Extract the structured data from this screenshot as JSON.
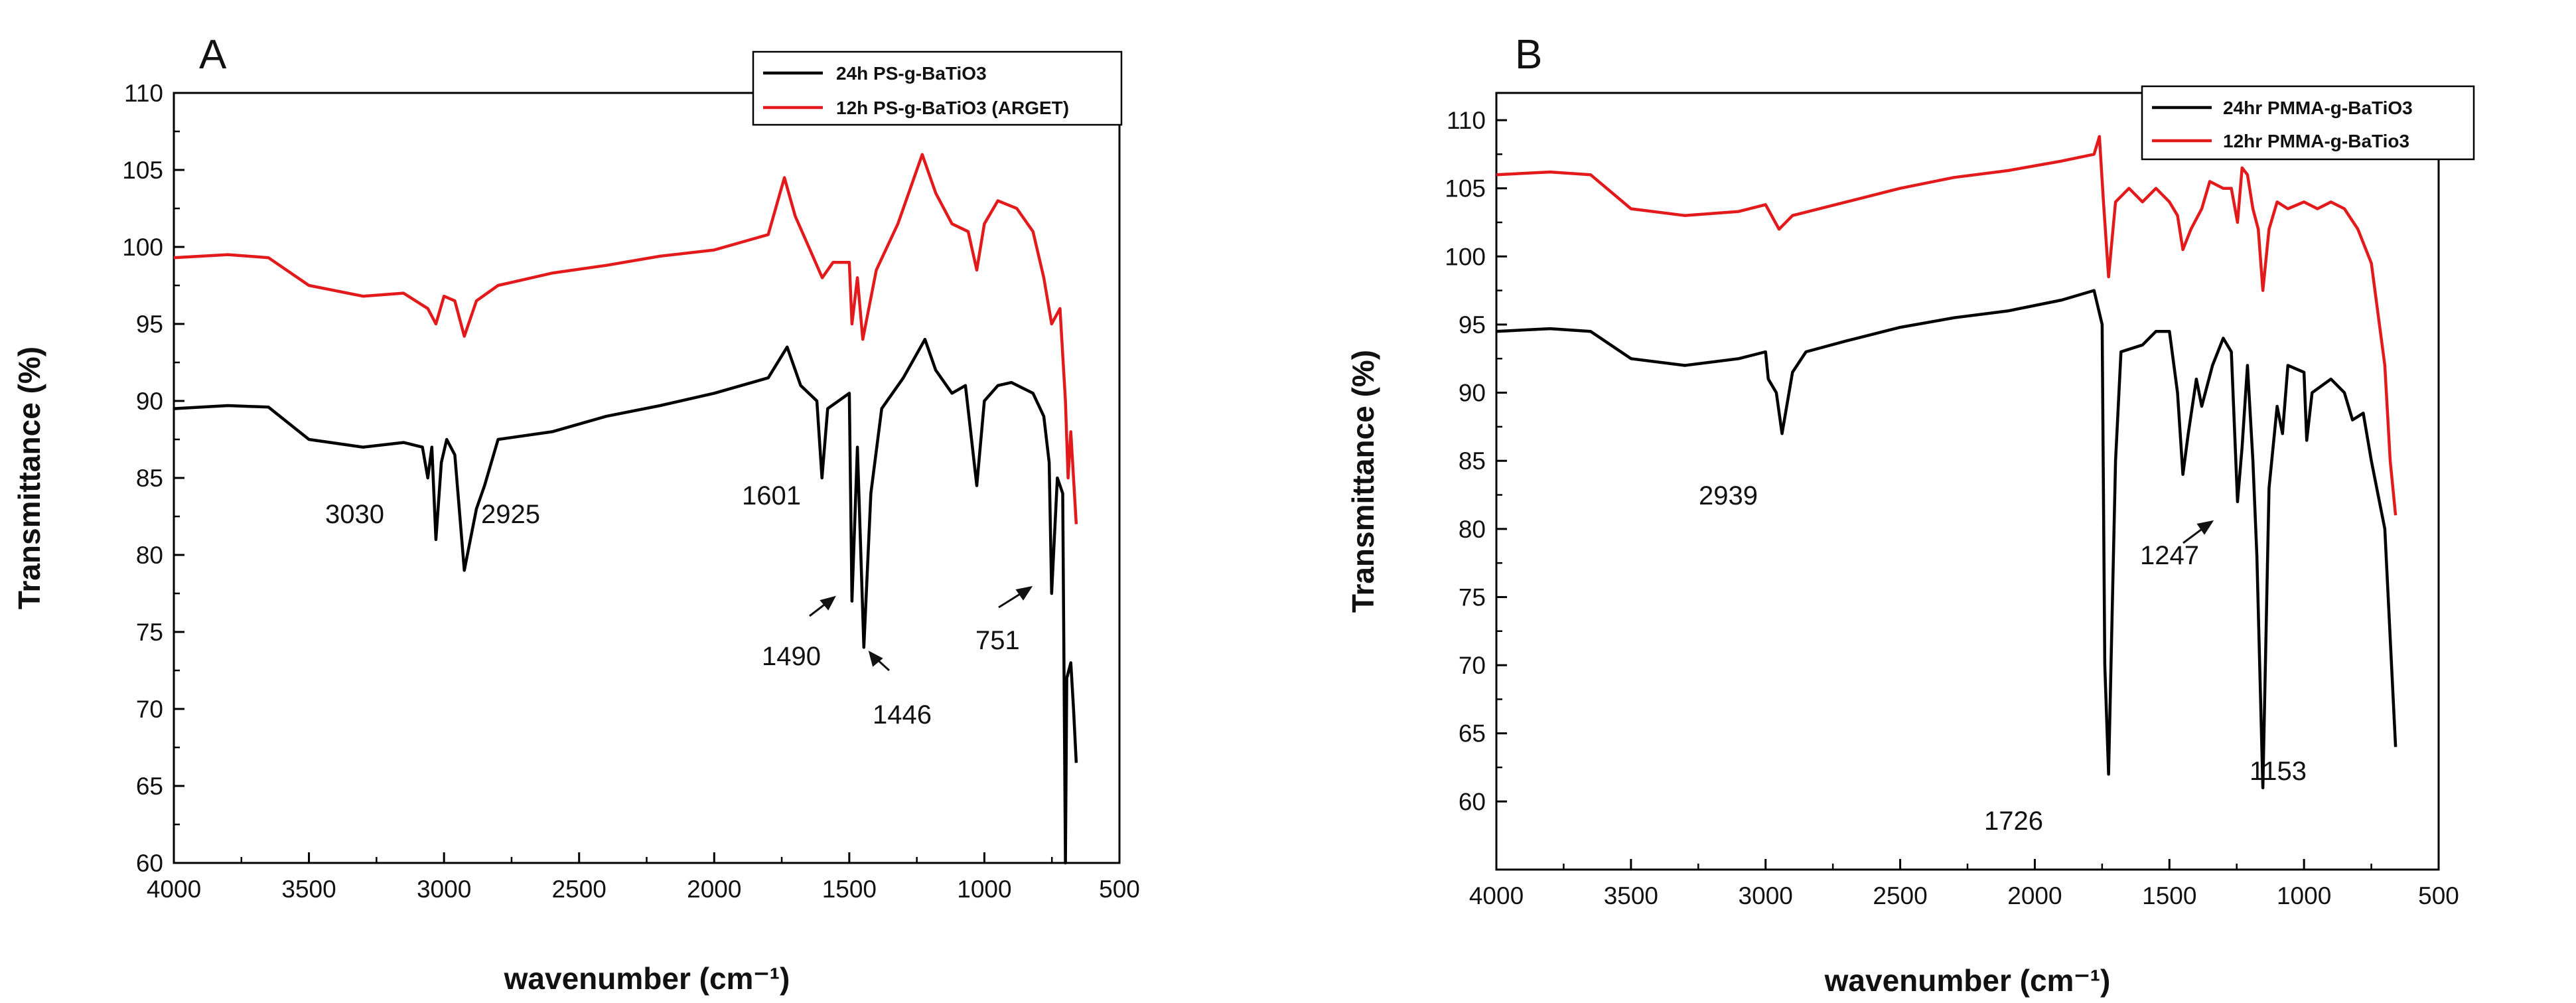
{
  "chart_data": [
    {
      "type": "line",
      "panel": "A",
      "xlabel": "wavenumber (cm⁻¹)",
      "ylabel": "Transmittance (%)",
      "xlim": [
        4000,
        500
      ],
      "ylim": [
        60,
        110
      ],
      "xticks": [
        4000,
        3500,
        3000,
        2500,
        2000,
        1500,
        1000,
        500
      ],
      "yticks": [
        60,
        65,
        70,
        75,
        80,
        85,
        90,
        95,
        100,
        105,
        110
      ],
      "legend_position": "top-right",
      "series": [
        {
          "name": "24h PS-g-BaTiO3",
          "color": "#000000",
          "points": [
            [
              4000,
              89.5
            ],
            [
              3800,
              89.7
            ],
            [
              3650,
              89.6
            ],
            [
              3500,
              87.5
            ],
            [
              3300,
              87.0
            ],
            [
              3150,
              87.3
            ],
            [
              3080,
              87.0
            ],
            [
              3060,
              85.0
            ],
            [
              3045,
              87.0
            ],
            [
              3030,
              81.0
            ],
            [
              3010,
              86.0
            ],
            [
              2990,
              87.5
            ],
            [
              2960,
              86.5
            ],
            [
              2925,
              79.0
            ],
            [
              2880,
              83.0
            ],
            [
              2850,
              84.5
            ],
            [
              2800,
              87.5
            ],
            [
              2600,
              88.0
            ],
            [
              2400,
              89.0
            ],
            [
              2200,
              89.7
            ],
            [
              2000,
              90.5
            ],
            [
              1900,
              91.0
            ],
            [
              1800,
              91.5
            ],
            [
              1730,
              93.5
            ],
            [
              1680,
              91.0
            ],
            [
              1620,
              90.0
            ],
            [
              1601,
              85.0
            ],
            [
              1580,
              89.5
            ],
            [
              1500,
              90.5
            ],
            [
              1490,
              77.0
            ],
            [
              1470,
              87.0
            ],
            [
              1446,
              74.0
            ],
            [
              1420,
              84.0
            ],
            [
              1380,
              89.5
            ],
            [
              1300,
              91.5
            ],
            [
              1220,
              94.0
            ],
            [
              1180,
              92.0
            ],
            [
              1120,
              90.5
            ],
            [
              1070,
              91.0
            ],
            [
              1028,
              84.5
            ],
            [
              1000,
              90.0
            ],
            [
              950,
              91.0
            ],
            [
              900,
              91.2
            ],
            [
              820,
              90.5
            ],
            [
              780,
              89.0
            ],
            [
              760,
              86.0
            ],
            [
              751,
              77.5
            ],
            [
              730,
              85.0
            ],
            [
              710,
              84.0
            ],
            [
              700,
              60.0
            ],
            [
              695,
              72.0
            ],
            [
              680,
              73.0
            ],
            [
              670,
              70.0
            ],
            [
              660,
              66.5
            ]
          ]
        },
        {
          "name": "12h PS-g-BaTiO3 (ARGET)",
          "color": "#e31a1c",
          "points": [
            [
              4000,
              99.3
            ],
            [
              3800,
              99.5
            ],
            [
              3650,
              99.3
            ],
            [
              3500,
              97.5
            ],
            [
              3300,
              96.8
            ],
            [
              3150,
              97.0
            ],
            [
              3060,
              96.0
            ],
            [
              3030,
              95.0
            ],
            [
              3000,
              96.8
            ],
            [
              2960,
              96.5
            ],
            [
              2925,
              94.2
            ],
            [
              2880,
              96.5
            ],
            [
              2800,
              97.5
            ],
            [
              2600,
              98.3
            ],
            [
              2400,
              98.8
            ],
            [
              2200,
              99.4
            ],
            [
              2000,
              99.8
            ],
            [
              1900,
              100.3
            ],
            [
              1800,
              100.8
            ],
            [
              1740,
              104.5
            ],
            [
              1700,
              102.0
            ],
            [
              1650,
              100.0
            ],
            [
              1600,
              98.0
            ],
            [
              1560,
              99.0
            ],
            [
              1500,
              99.0
            ],
            [
              1490,
              95.0
            ],
            [
              1470,
              98.0
            ],
            [
              1450,
              94.0
            ],
            [
              1400,
              98.5
            ],
            [
              1320,
              101.5
            ],
            [
              1230,
              106.0
            ],
            [
              1180,
              103.5
            ],
            [
              1120,
              101.5
            ],
            [
              1060,
              101.0
            ],
            [
              1028,
              98.5
            ],
            [
              1000,
              101.5
            ],
            [
              950,
              103.0
            ],
            [
              880,
              102.5
            ],
            [
              820,
              101.0
            ],
            [
              780,
              98.0
            ],
            [
              751,
              95.0
            ],
            [
              720,
              96.0
            ],
            [
              700,
              90.0
            ],
            [
              690,
              85.0
            ],
            [
              680,
              88.0
            ],
            [
              660,
              82.0
            ]
          ]
        }
      ],
      "annotations": [
        "3030",
        "2925",
        "1601",
        "1490",
        "1446",
        "751"
      ],
      "legend": [
        "24h PS-g-BaTiO3",
        "12h PS-g-BaTiO3 (ARGET)"
      ]
    },
    {
      "type": "line",
      "panel": "B",
      "xlabel": "wavenumber (cm⁻¹)",
      "ylabel": "Transmittance (%)",
      "xlim": [
        4000,
        500
      ],
      "ylim": [
        55,
        112
      ],
      "xticks": [
        4000,
        3500,
        3000,
        2500,
        2000,
        1500,
        1000,
        500
      ],
      "yticks": [
        60,
        65,
        70,
        75,
        80,
        85,
        90,
        95,
        100,
        105,
        110
      ],
      "legend_position": "top-right",
      "series": [
        {
          "name": "24hr PMMA-g-BaTiO3",
          "color": "#000000",
          "points": [
            [
              4000,
              94.5
            ],
            [
              3800,
              94.7
            ],
            [
              3650,
              94.5
            ],
            [
              3500,
              92.5
            ],
            [
              3300,
              92.0
            ],
            [
              3100,
              92.5
            ],
            [
              3000,
              93.0
            ],
            [
              2990,
              91.0
            ],
            [
              2960,
              90.0
            ],
            [
              2939,
              87.0
            ],
            [
              2900,
              91.5
            ],
            [
              2850,
              93.0
            ],
            [
              2700,
              93.8
            ],
            [
              2500,
              94.8
            ],
            [
              2300,
              95.5
            ],
            [
              2100,
              96.0
            ],
            [
              1900,
              96.8
            ],
            [
              1780,
              97.5
            ],
            [
              1750,
              95.0
            ],
            [
              1740,
              70.0
            ],
            [
              1726,
              62.0
            ],
            [
              1700,
              85.0
            ],
            [
              1680,
              93.0
            ],
            [
              1600,
              93.5
            ],
            [
              1550,
              94.5
            ],
            [
              1500,
              94.5
            ],
            [
              1470,
              90.0
            ],
            [
              1450,
              84.0
            ],
            [
              1430,
              87.0
            ],
            [
              1400,
              91.0
            ],
            [
              1380,
              89.0
            ],
            [
              1340,
              92.0
            ],
            [
              1300,
              94.0
            ],
            [
              1270,
              93.0
            ],
            [
              1247,
              82.0
            ],
            [
              1230,
              86.0
            ],
            [
              1210,
              92.0
            ],
            [
              1190,
              85.0
            ],
            [
              1175,
              78.0
            ],
            [
              1153,
              61.0
            ],
            [
              1130,
              83.0
            ],
            [
              1100,
              89.0
            ],
            [
              1080,
              87.0
            ],
            [
              1060,
              92.0
            ],
            [
              1000,
              91.5
            ],
            [
              990,
              86.5
            ],
            [
              970,
              90.0
            ],
            [
              900,
              91.0
            ],
            [
              850,
              90.0
            ],
            [
              820,
              88.0
            ],
            [
              780,
              88.5
            ],
            [
              750,
              85.0
            ],
            [
              700,
              80.0
            ],
            [
              680,
              72.0
            ],
            [
              660,
              64.0
            ]
          ]
        },
        {
          "name": "12hr PMMA-g-BaTio3",
          "color": "#e31a1c",
          "points": [
            [
              4000,
              106.0
            ],
            [
              3800,
              106.2
            ],
            [
              3650,
              106.0
            ],
            [
              3500,
              103.5
            ],
            [
              3300,
              103.0
            ],
            [
              3100,
              103.3
            ],
            [
              3000,
              103.8
            ],
            [
              2950,
              102.0
            ],
            [
              2900,
              103.0
            ],
            [
              2700,
              104.0
            ],
            [
              2500,
              105.0
            ],
            [
              2300,
              105.8
            ],
            [
              2100,
              106.3
            ],
            [
              1900,
              107.0
            ],
            [
              1780,
              107.5
            ],
            [
              1760,
              108.8
            ],
            [
              1745,
              104.0
            ],
            [
              1726,
              98.5
            ],
            [
              1700,
              104.0
            ],
            [
              1650,
              105.0
            ],
            [
              1600,
              104.0
            ],
            [
              1550,
              105.0
            ],
            [
              1500,
              104.0
            ],
            [
              1470,
              103.0
            ],
            [
              1450,
              100.5
            ],
            [
              1420,
              102.0
            ],
            [
              1380,
              103.5
            ],
            [
              1350,
              105.5
            ],
            [
              1300,
              105.0
            ],
            [
              1270,
              105.0
            ],
            [
              1247,
              102.5
            ],
            [
              1230,
              106.5
            ],
            [
              1210,
              106.0
            ],
            [
              1190,
              103.5
            ],
            [
              1170,
              102.0
            ],
            [
              1153,
              97.5
            ],
            [
              1130,
              102.0
            ],
            [
              1100,
              104.0
            ],
            [
              1060,
              103.5
            ],
            [
              1000,
              104.0
            ],
            [
              950,
              103.5
            ],
            [
              900,
              104.0
            ],
            [
              850,
              103.5
            ],
            [
              800,
              102.0
            ],
            [
              750,
              99.5
            ],
            [
              700,
              92.0
            ],
            [
              680,
              85.0
            ],
            [
              660,
              81.0
            ]
          ]
        }
      ],
      "annotations": [
        "2939",
        "1726",
        "1247",
        "1153"
      ],
      "legend": [
        "24hr PMMA-g-BaTiO3",
        "12hr PMMA-g-BaTio3"
      ]
    }
  ]
}
